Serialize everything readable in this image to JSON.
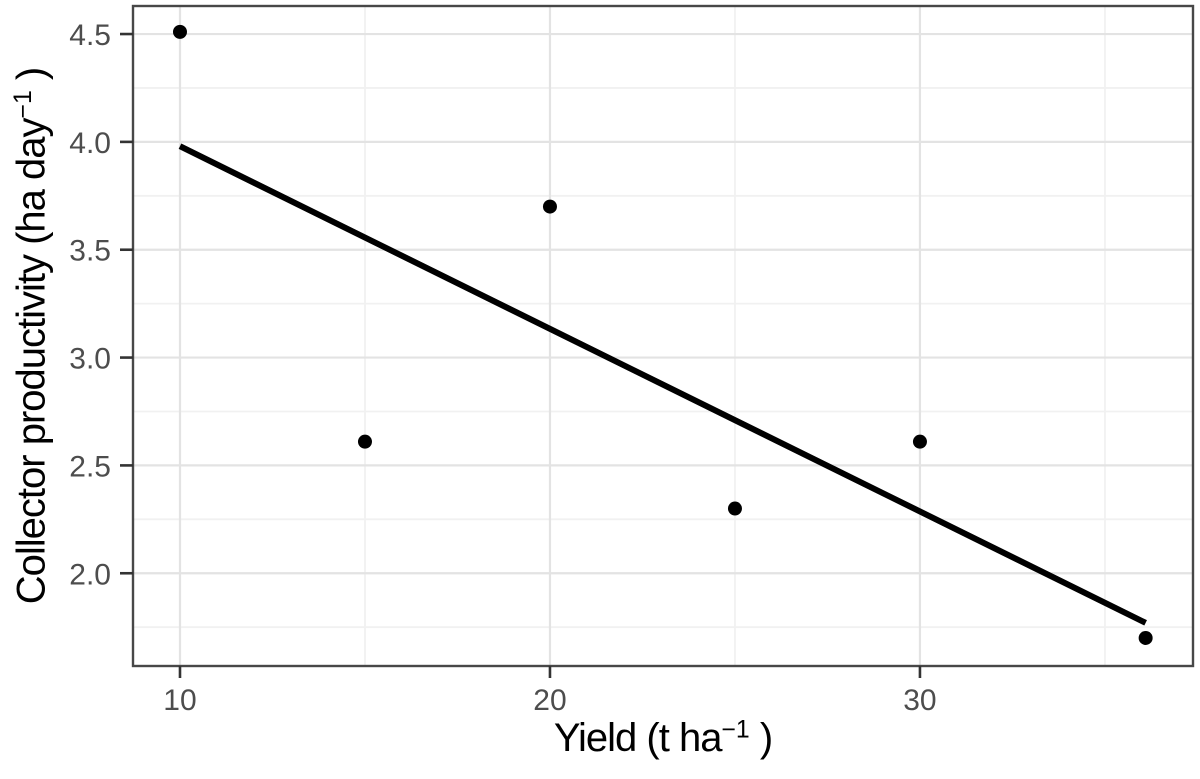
{
  "chart_data": {
    "type": "scatter",
    "title": "",
    "xlabel": "Yield (t ha⁻¹ )",
    "ylabel": "Collector productivity (ha day⁻¹ )",
    "xlabel_parts": {
      "pre": "Yield (t ha",
      "sup": "−1",
      "post": " )"
    },
    "ylabel_parts": {
      "pre": "Collector productivity (ha day",
      "sup": "−1",
      "post": " )"
    },
    "points": [
      [
        10,
        4.51
      ],
      [
        15,
        2.61
      ],
      [
        20,
        3.7
      ],
      [
        25,
        2.3
      ],
      [
        30,
        2.61
      ],
      [
        36.1,
        1.7
      ]
    ],
    "trendline": {
      "x1": 10.0,
      "y1": 3.98,
      "x2": 36.1,
      "y2": 1.77
    },
    "xlim": [
      8.73,
      37.38
    ],
    "ylim": [
      1.57,
      4.63
    ],
    "xticks": [
      10,
      20,
      30
    ],
    "xtick_labels": [
      "10",
      "20",
      "30"
    ],
    "xminor": [
      15,
      25,
      35
    ],
    "yticks": [
      2.0,
      2.5,
      3.0,
      3.5,
      4.0,
      4.5
    ],
    "ytick_labels": [
      "2.0",
      "2.5",
      "3.0",
      "3.5",
      "4.0",
      "4.5"
    ],
    "yminor": [
      1.75,
      2.25,
      2.75,
      3.25,
      3.75,
      4.25
    ],
    "grid": "major+minor",
    "legend": false,
    "colors": {
      "background": "#ffffff",
      "point": "#000000",
      "trendline": "#000000",
      "grid_major": "#e3e3e3",
      "grid_minor": "#f1f1f1",
      "panel_border": "#474747",
      "tick_mark": "#333333",
      "tick_label": "#4d4d4d",
      "axis_title": "#000000"
    }
  }
}
